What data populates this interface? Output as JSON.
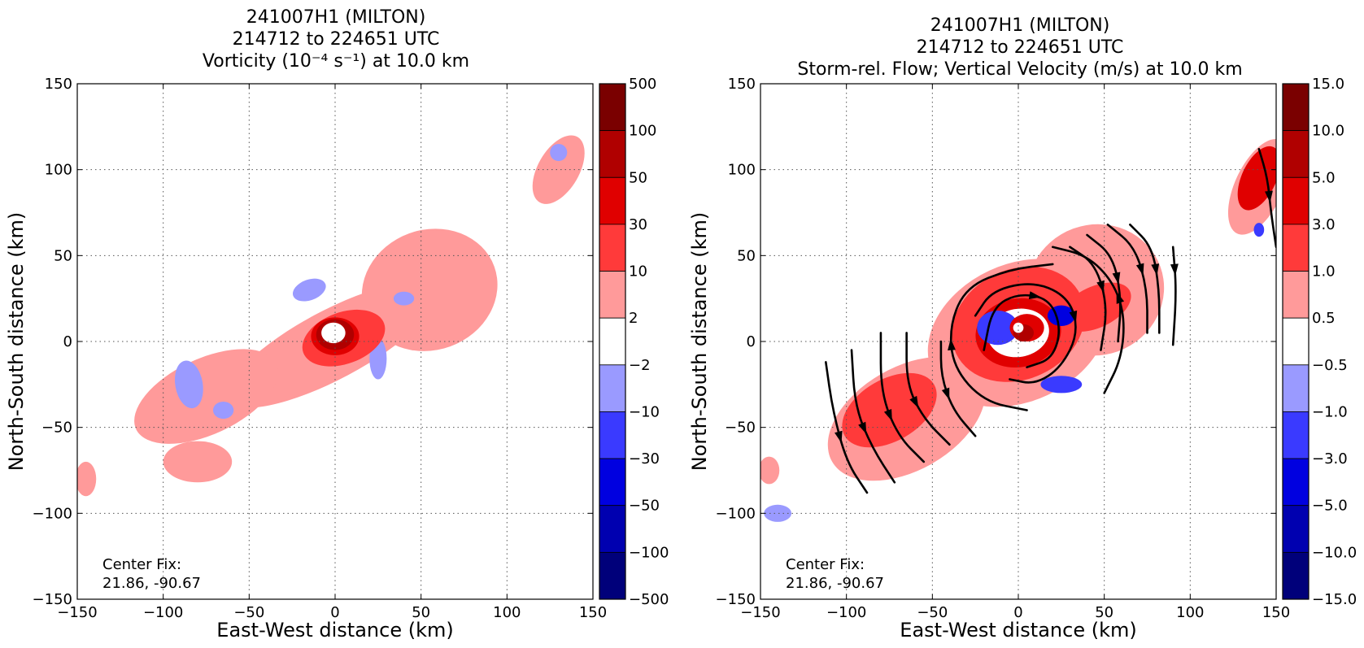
{
  "chart_data": [
    {
      "type": "contour",
      "title_lines": [
        "241007H1 (MILTON)",
        "214712 to 224651 UTC",
        "Vorticity (10⁻⁴ s⁻¹) at 10.0 km"
      ],
      "xlabel": "East-West distance (km)",
      "ylabel": "North-South distance (km)",
      "xlim": [
        -150,
        150
      ],
      "ylim": [
        -150,
        150
      ],
      "xticks": [
        -150,
        -100,
        -50,
        0,
        50,
        100,
        150
      ],
      "yticks": [
        -150,
        -100,
        -50,
        0,
        50,
        100,
        150
      ],
      "xtick_labels": [
        "−150",
        "−100",
        "−50",
        "0",
        "50",
        "100",
        "150"
      ],
      "ytick_labels": [
        "−150",
        "−100",
        "−50",
        "0",
        "50",
        "100",
        "150"
      ],
      "grid": true,
      "annotation_lines": [
        "Center Fix:",
        "21.86, -90.67"
      ],
      "colorbar": {
        "labels": [
          "500",
          "100",
          "50",
          "30",
          "10",
          "2",
          "−2",
          "−10",
          "−30",
          "−50",
          "−100",
          "−500"
        ],
        "colors": [
          "#7a0000",
          "#b00000",
          "#e00000",
          "#ff3a3a",
          "#ff9a9a",
          "#ffffff",
          "#9a9aff",
          "#3a3aff",
          "#0000e0",
          "#0000b0",
          "#00007a"
        ]
      },
      "regions": [
        {
          "level": "#ff9a9a",
          "center": [
            -2,
            -2
          ],
          "r": [
            68,
            20
          ],
          "rot": 28
        },
        {
          "level": "#ff9a9a",
          "center": [
            55,
            30
          ],
          "r": [
            40,
            35
          ],
          "rot": 20
        },
        {
          "level": "#ff9a9a",
          "center": [
            -75,
            -32
          ],
          "r": [
            45,
            22
          ],
          "rot": 25
        },
        {
          "level": "#ff9a9a",
          "center": [
            -80,
            -70
          ],
          "r": [
            20,
            12
          ],
          "rot": 0
        },
        {
          "level": "#ff9a9a",
          "center": [
            130,
            100
          ],
          "r": [
            12,
            22
          ],
          "rot": -30
        },
        {
          "level": "#ff9a9a",
          "center": [
            -145,
            -80
          ],
          "r": [
            6,
            10
          ],
          "rot": 0
        },
        {
          "level": "#9a9aff",
          "center": [
            -85,
            -25
          ],
          "r": [
            8,
            14
          ],
          "rot": 10
        },
        {
          "level": "#9a9aff",
          "center": [
            -65,
            -40
          ],
          "r": [
            6,
            5
          ],
          "rot": 0
        },
        {
          "level": "#9a9aff",
          "center": [
            -15,
            30
          ],
          "r": [
            10,
            6
          ],
          "rot": 20
        },
        {
          "level": "#9a9aff",
          "center": [
            25,
            -10
          ],
          "r": [
            5,
            12
          ],
          "rot": 0
        },
        {
          "level": "#9a9aff",
          "center": [
            40,
            25
          ],
          "r": [
            6,
            4
          ],
          "rot": 0
        },
        {
          "level": "#9a9aff",
          "center": [
            130,
            110
          ],
          "r": [
            5,
            5
          ],
          "rot": 0
        },
        {
          "level": "#ff3a3a",
          "center": [
            5,
            2
          ],
          "r": [
            25,
            15
          ],
          "rot": 20
        },
        {
          "level": "#e00000",
          "center": [
            0,
            3
          ],
          "r": [
            14,
            11
          ],
          "rot": 0
        },
        {
          "level": "#b00000",
          "center": [
            0,
            4
          ],
          "r": [
            11,
            9
          ],
          "rot": 0
        },
        {
          "level": "#ffffff",
          "center": [
            -1,
            5
          ],
          "r": [
            7,
            6
          ],
          "rot": 0
        }
      ],
      "streamlines": []
    },
    {
      "type": "contour",
      "title_lines": [
        "241007H1 (MILTON)",
        "214712 to 224651 UTC",
        "Storm-rel. Flow; Vertical Velocity (m/s) at 10.0 km"
      ],
      "xlabel": "East-West distance (km)",
      "ylabel": "North-South distance (km)",
      "xlim": [
        -150,
        150
      ],
      "ylim": [
        -150,
        150
      ],
      "xticks": [
        -150,
        -100,
        -50,
        0,
        50,
        100,
        150
      ],
      "yticks": [
        -150,
        -100,
        -50,
        0,
        50,
        100,
        150
      ],
      "xtick_labels": [
        "−150",
        "−100",
        "−50",
        "0",
        "50",
        "100",
        "150"
      ],
      "ytick_labels": [
        "−150",
        "−100",
        "−50",
        "0",
        "50",
        "100",
        "150"
      ],
      "grid": true,
      "annotation_lines": [
        "Center Fix:",
        "21.86, -90.67"
      ],
      "colorbar": {
        "labels": [
          "15.0",
          "10.0",
          "5.0",
          "3.0",
          "1.0",
          "0.5",
          "−0.5",
          "−1.0",
          "−3.0",
          "−5.0",
          "−10.0",
          "−15.0"
        ],
        "colors": [
          "#7a0000",
          "#b00000",
          "#e00000",
          "#ff3a3a",
          "#ff9a9a",
          "#ffffff",
          "#9a9aff",
          "#3a3aff",
          "#0000e0",
          "#0000b0",
          "#00007a"
        ]
      },
      "regions": [
        {
          "level": "#ff9a9a",
          "center": [
            0,
            5
          ],
          "r": [
            55,
            40
          ],
          "rot": 25
        },
        {
          "level": "#ff9a9a",
          "center": [
            45,
            30
          ],
          "r": [
            40,
            38
          ],
          "rot": 20
        },
        {
          "level": "#ff9a9a",
          "center": [
            -65,
            -45
          ],
          "r": [
            50,
            30
          ],
          "rot": 30
        },
        {
          "level": "#ff9a9a",
          "center": [
            140,
            90
          ],
          "r": [
            14,
            30
          ],
          "rot": -25
        },
        {
          "level": "#ff9a9a",
          "center": [
            -145,
            -75
          ],
          "r": [
            6,
            8
          ],
          "rot": 0
        },
        {
          "level": "#9a9aff",
          "center": [
            -140,
            -100
          ],
          "r": [
            8,
            5
          ],
          "rot": 0
        },
        {
          "level": "#ff3a3a",
          "center": [
            0,
            10
          ],
          "r": [
            40,
            32
          ],
          "rot": 25
        },
        {
          "level": "#ff3a3a",
          "center": [
            -75,
            -40
          ],
          "r": [
            30,
            18
          ],
          "rot": 30
        },
        {
          "level": "#ff3a3a",
          "center": [
            45,
            20
          ],
          "r": [
            22,
            12
          ],
          "rot": 25
        },
        {
          "level": "#e00000",
          "center": [
            0,
            5
          ],
          "r": [
            25,
            20
          ],
          "rot": 10
        },
        {
          "level": "#ffffff",
          "center": [
            0,
            5
          ],
          "r": [
            18,
            14
          ],
          "rot": 10
        },
        {
          "level": "#3a3aff",
          "center": [
            -12,
            8
          ],
          "r": [
            12,
            10
          ],
          "rot": 0
        },
        {
          "level": "#0000e0",
          "center": [
            25,
            15
          ],
          "r": [
            8,
            6
          ],
          "rot": 0
        },
        {
          "level": "#3a3aff",
          "center": [
            25,
            -25
          ],
          "r": [
            12,
            5
          ],
          "rot": 0
        },
        {
          "level": "#e00000",
          "center": [
            5,
            8
          ],
          "r": [
            10,
            8
          ],
          "rot": 0
        },
        {
          "level": "#b00000",
          "center": [
            3,
            5
          ],
          "r": [
            6,
            5
          ],
          "rot": 0
        },
        {
          "level": "#ffffff",
          "center": [
            0,
            8
          ],
          "r": [
            3,
            3
          ],
          "rot": 0
        },
        {
          "level": "#e00000",
          "center": [
            140,
            95
          ],
          "r": [
            10,
            20
          ],
          "rot": -25
        },
        {
          "level": "#3a3aff",
          "center": [
            140,
            65
          ],
          "r": [
            3,
            4
          ],
          "rot": 0
        }
      ],
      "streamlines": [
        [
          [
            -112,
            -12
          ],
          [
            -108,
            -40
          ],
          [
            -100,
            -70
          ],
          [
            -88,
            -88
          ]
        ],
        [
          [
            -97,
            -5
          ],
          [
            -95,
            -38
          ],
          [
            -85,
            -62
          ],
          [
            -72,
            -82
          ]
        ],
        [
          [
            -80,
            5
          ],
          [
            -80,
            -30
          ],
          [
            -70,
            -55
          ],
          [
            -55,
            -70
          ]
        ],
        [
          [
            -65,
            5
          ],
          [
            -65,
            -25
          ],
          [
            -55,
            -45
          ],
          [
            -40,
            -60
          ]
        ],
        [
          [
            -45,
            0
          ],
          [
            -45,
            -20
          ],
          [
            -38,
            -40
          ],
          [
            -25,
            -55
          ]
        ],
        [
          [
            5,
            -40
          ],
          [
            -20,
            -35
          ],
          [
            -38,
            -15
          ],
          [
            -40,
            10
          ],
          [
            -30,
            32
          ],
          [
            -5,
            42
          ],
          [
            20,
            45
          ]
        ],
        [
          [
            50,
            -30
          ],
          [
            60,
            -10
          ],
          [
            62,
            15
          ],
          [
            55,
            35
          ],
          [
            40,
            50
          ],
          [
            20,
            55
          ]
        ],
        [
          [
            -20,
            -5
          ],
          [
            -15,
            20
          ],
          [
            0,
            28
          ],
          [
            18,
            25
          ],
          [
            25,
            8
          ],
          [
            20,
            -10
          ],
          [
            5,
            -15
          ]
        ],
        [
          [
            -25,
            15
          ],
          [
            -15,
            30
          ],
          [
            10,
            35
          ],
          [
            30,
            25
          ],
          [
            35,
            5
          ],
          [
            25,
            -15
          ],
          [
            10,
            -25
          ],
          [
            -5,
            -22
          ]
        ],
        [
          [
            30,
            55
          ],
          [
            45,
            45
          ],
          [
            52,
            20
          ],
          [
            48,
            -5
          ]
        ],
        [
          [
            40,
            62
          ],
          [
            55,
            50
          ],
          [
            60,
            25
          ],
          [
            58,
            0
          ]
        ],
        [
          [
            52,
            68
          ],
          [
            68,
            55
          ],
          [
            75,
            30
          ],
          [
            75,
            5
          ]
        ],
        [
          [
            65,
            68
          ],
          [
            78,
            55
          ],
          [
            82,
            30
          ],
          [
            82,
            5
          ]
        ],
        [
          [
            90,
            55
          ],
          [
            92,
            30
          ],
          [
            90,
            -2
          ]
        ],
        [
          [
            140,
            112
          ],
          [
            145,
            95
          ],
          [
            147,
            75
          ],
          [
            150,
            55
          ]
        ]
      ]
    }
  ]
}
